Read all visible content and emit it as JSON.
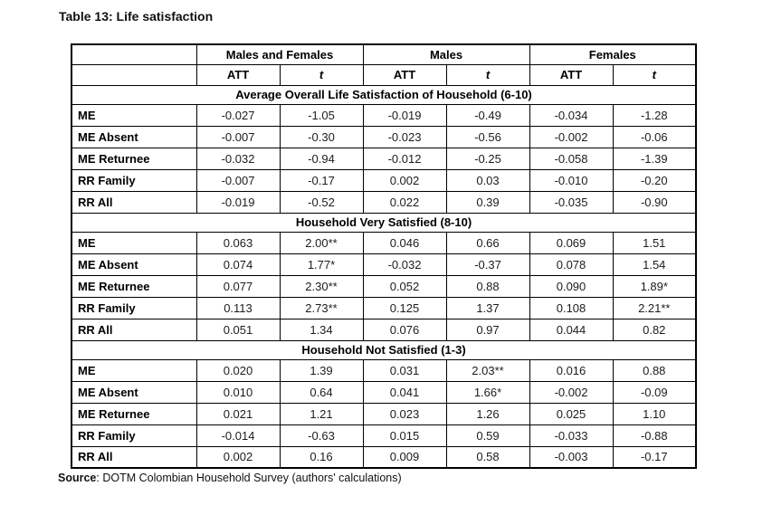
{
  "page": {
    "title": "Table 13: Life satisfaction",
    "source_label": "Source",
    "source_text": ": DOTM Colombian Household Survey (authors' calculations)"
  },
  "table": {
    "group_headers": [
      "Males and Females",
      "Males",
      "Females"
    ],
    "sub_headers": [
      "ATT",
      "t",
      "ATT",
      "t",
      "ATT",
      "t"
    ],
    "sections": [
      {
        "title": "Average Overall Life Satisfaction of Household (6-10)",
        "rows": [
          {
            "label": "ME",
            "values": [
              "-0.027",
              "-1.05",
              "-0.019",
              "-0.49",
              "-0.034",
              "-1.28"
            ]
          },
          {
            "label": "ME Absent",
            "values": [
              "-0.007",
              "-0.30",
              "-0.023",
              "-0.56",
              "-0.002",
              "-0.06"
            ]
          },
          {
            "label": "ME Returnee",
            "values": [
              "-0.032",
              "-0.94",
              "-0.012",
              "-0.25",
              "-0.058",
              "-1.39"
            ]
          },
          {
            "label": "RR Family",
            "values": [
              "-0.007",
              "-0.17",
              "0.002",
              "0.03",
              "-0.010",
              "-0.20"
            ]
          },
          {
            "label": "RR All",
            "values": [
              "-0.019",
              "-0.52",
              "0.022",
              "0.39",
              "-0.035",
              "-0.90"
            ]
          }
        ]
      },
      {
        "title": "Household Very Satisfied (8-10)",
        "rows": [
          {
            "label": "ME",
            "values": [
              "0.063",
              "2.00**",
              "0.046",
              "0.66",
              "0.069",
              "1.51"
            ]
          },
          {
            "label": "ME Absent",
            "values": [
              "0.074",
              "1.77*",
              "-0.032",
              "-0.37",
              "0.078",
              "1.54"
            ]
          },
          {
            "label": "ME Returnee",
            "values": [
              "0.077",
              "2.30**",
              "0.052",
              "0.88",
              "0.090",
              "1.89*"
            ]
          },
          {
            "label": "RR Family",
            "values": [
              "0.113",
              "2.73**",
              "0.125",
              "1.37",
              "0.108",
              "2.21**"
            ]
          },
          {
            "label": "RR All",
            "values": [
              "0.051",
              "1.34",
              "0.076",
              "0.97",
              "0.044",
              "0.82"
            ]
          }
        ]
      },
      {
        "title": "Household Not Satisfied (1-3)",
        "rows": [
          {
            "label": "ME",
            "values": [
              "0.020",
              "1.39",
              "0.031",
              "2.03**",
              "0.016",
              "0.88"
            ]
          },
          {
            "label": "ME Absent",
            "values": [
              "0.010",
              "0.64",
              "0.041",
              "1.66*",
              "-0.002",
              "-0.09"
            ]
          },
          {
            "label": "ME Returnee",
            "values": [
              "0.021",
              "1.21",
              "0.023",
              "1.26",
              "0.025",
              "1.10"
            ]
          },
          {
            "label": "RR Family",
            "values": [
              "-0.014",
              "-0.63",
              "0.015",
              "0.59",
              "-0.033",
              "-0.88"
            ]
          },
          {
            "label": "RR All",
            "values": [
              "0.002",
              "0.16",
              "0.009",
              "0.58",
              "-0.003",
              "-0.17"
            ]
          }
        ]
      }
    ]
  }
}
